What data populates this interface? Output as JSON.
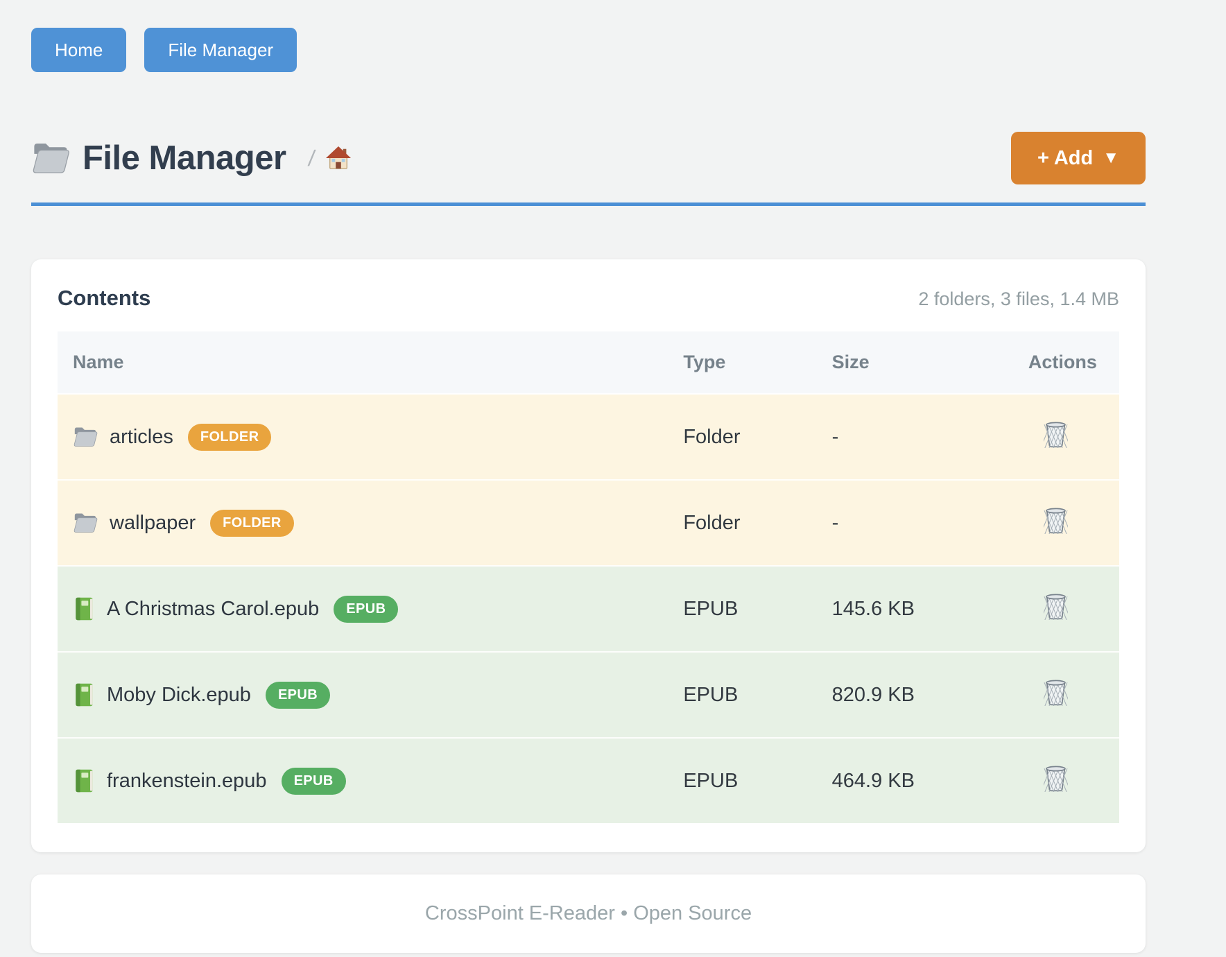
{
  "nav": {
    "buttons": [
      {
        "label": "Home"
      },
      {
        "label": "File Manager"
      }
    ]
  },
  "header": {
    "title": "File Manager",
    "title_icon": "folder-icon",
    "breadcrumb_separator": "/",
    "breadcrumb_home_icon": "home-icon",
    "add_button": {
      "label": "+ Add",
      "caret": "▼"
    }
  },
  "content": {
    "card_title": "Contents",
    "summary": "2 folders, 3 files, 1.4 MB",
    "table": {
      "columns": [
        "Name",
        "Type",
        "Size",
        "Actions"
      ],
      "rows": [
        {
          "name": "articles",
          "badge": "FOLDER",
          "kind": "folder",
          "icon": "folder-icon",
          "type": "Folder",
          "size": "-"
        },
        {
          "name": "wallpaper",
          "badge": "FOLDER",
          "kind": "folder",
          "icon": "folder-icon",
          "type": "Folder",
          "size": "-"
        },
        {
          "name": "A Christmas Carol.epub",
          "badge": "EPUB",
          "kind": "epub",
          "icon": "book-icon",
          "type": "EPUB",
          "size": "145.6 KB"
        },
        {
          "name": "Moby Dick.epub",
          "badge": "EPUB",
          "kind": "epub",
          "icon": "book-icon",
          "type": "EPUB",
          "size": "820.9 KB"
        },
        {
          "name": "frankenstein.epub",
          "badge": "EPUB",
          "kind": "epub",
          "icon": "book-icon",
          "type": "EPUB",
          "size": "464.9 KB"
        }
      ],
      "action_icon": "trash-icon"
    }
  },
  "footer": {
    "text": "CrossPoint E-Reader • Open Source"
  },
  "colors": {
    "primary_blue": "#4f92d6",
    "divider_blue": "#4b8fd5",
    "accent_orange": "#d9822f",
    "badge_folder_orange": "#e9a43e",
    "badge_epub_green": "#56ae62",
    "row_folder_bg": "#fdf5e1",
    "row_epub_bg": "#e7f1e5",
    "title_text": "#323e4e"
  }
}
